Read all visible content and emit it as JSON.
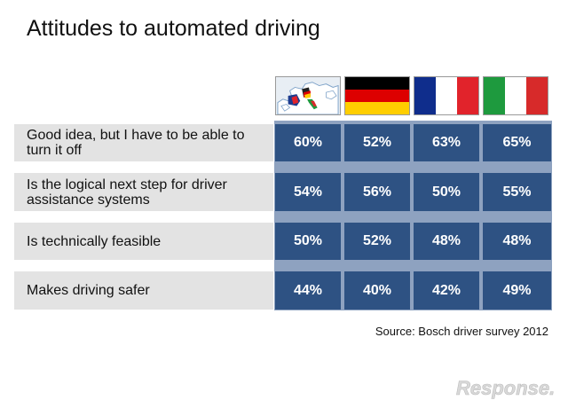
{
  "title": "Attitudes to automated driving",
  "source": "Source: Bosch driver survey 2012",
  "watermark": "Response.",
  "flags": [
    {
      "name": "europe-map",
      "colors": [
        "#e8eef4",
        "#7fa3c9"
      ]
    },
    {
      "name": "germany-flag",
      "colors": [
        "#000000",
        "#dd0000",
        "#ffce00"
      ]
    },
    {
      "name": "france-flag",
      "colors": [
        "#0f2d8c",
        "#ffffff",
        "#e1232b"
      ]
    },
    {
      "name": "italy-flag",
      "colors": [
        "#1e9a3e",
        "#ffffff",
        "#d72a2a"
      ]
    }
  ],
  "colors": {
    "cell_bg": "#2e5283",
    "grid_bg": "#8ea2c0",
    "label_bg": "#e3e3e3"
  },
  "chart_data": {
    "type": "table",
    "rows": [
      {
        "label": "Good idea, but I have to be able to turn it off",
        "values": [
          "60%",
          "52%",
          "63%",
          "65%"
        ]
      },
      {
        "label": "Is the logical next step for driver assistance systems",
        "values": [
          "54%",
          "56%",
          "50%",
          "55%"
        ]
      },
      {
        "label": "Is technically feasible",
        "values": [
          "50%",
          "52%",
          "48%",
          "48%"
        ]
      },
      {
        "label": "Makes driving safer",
        "values": [
          "44%",
          "40%",
          "42%",
          "49%"
        ]
      }
    ]
  }
}
